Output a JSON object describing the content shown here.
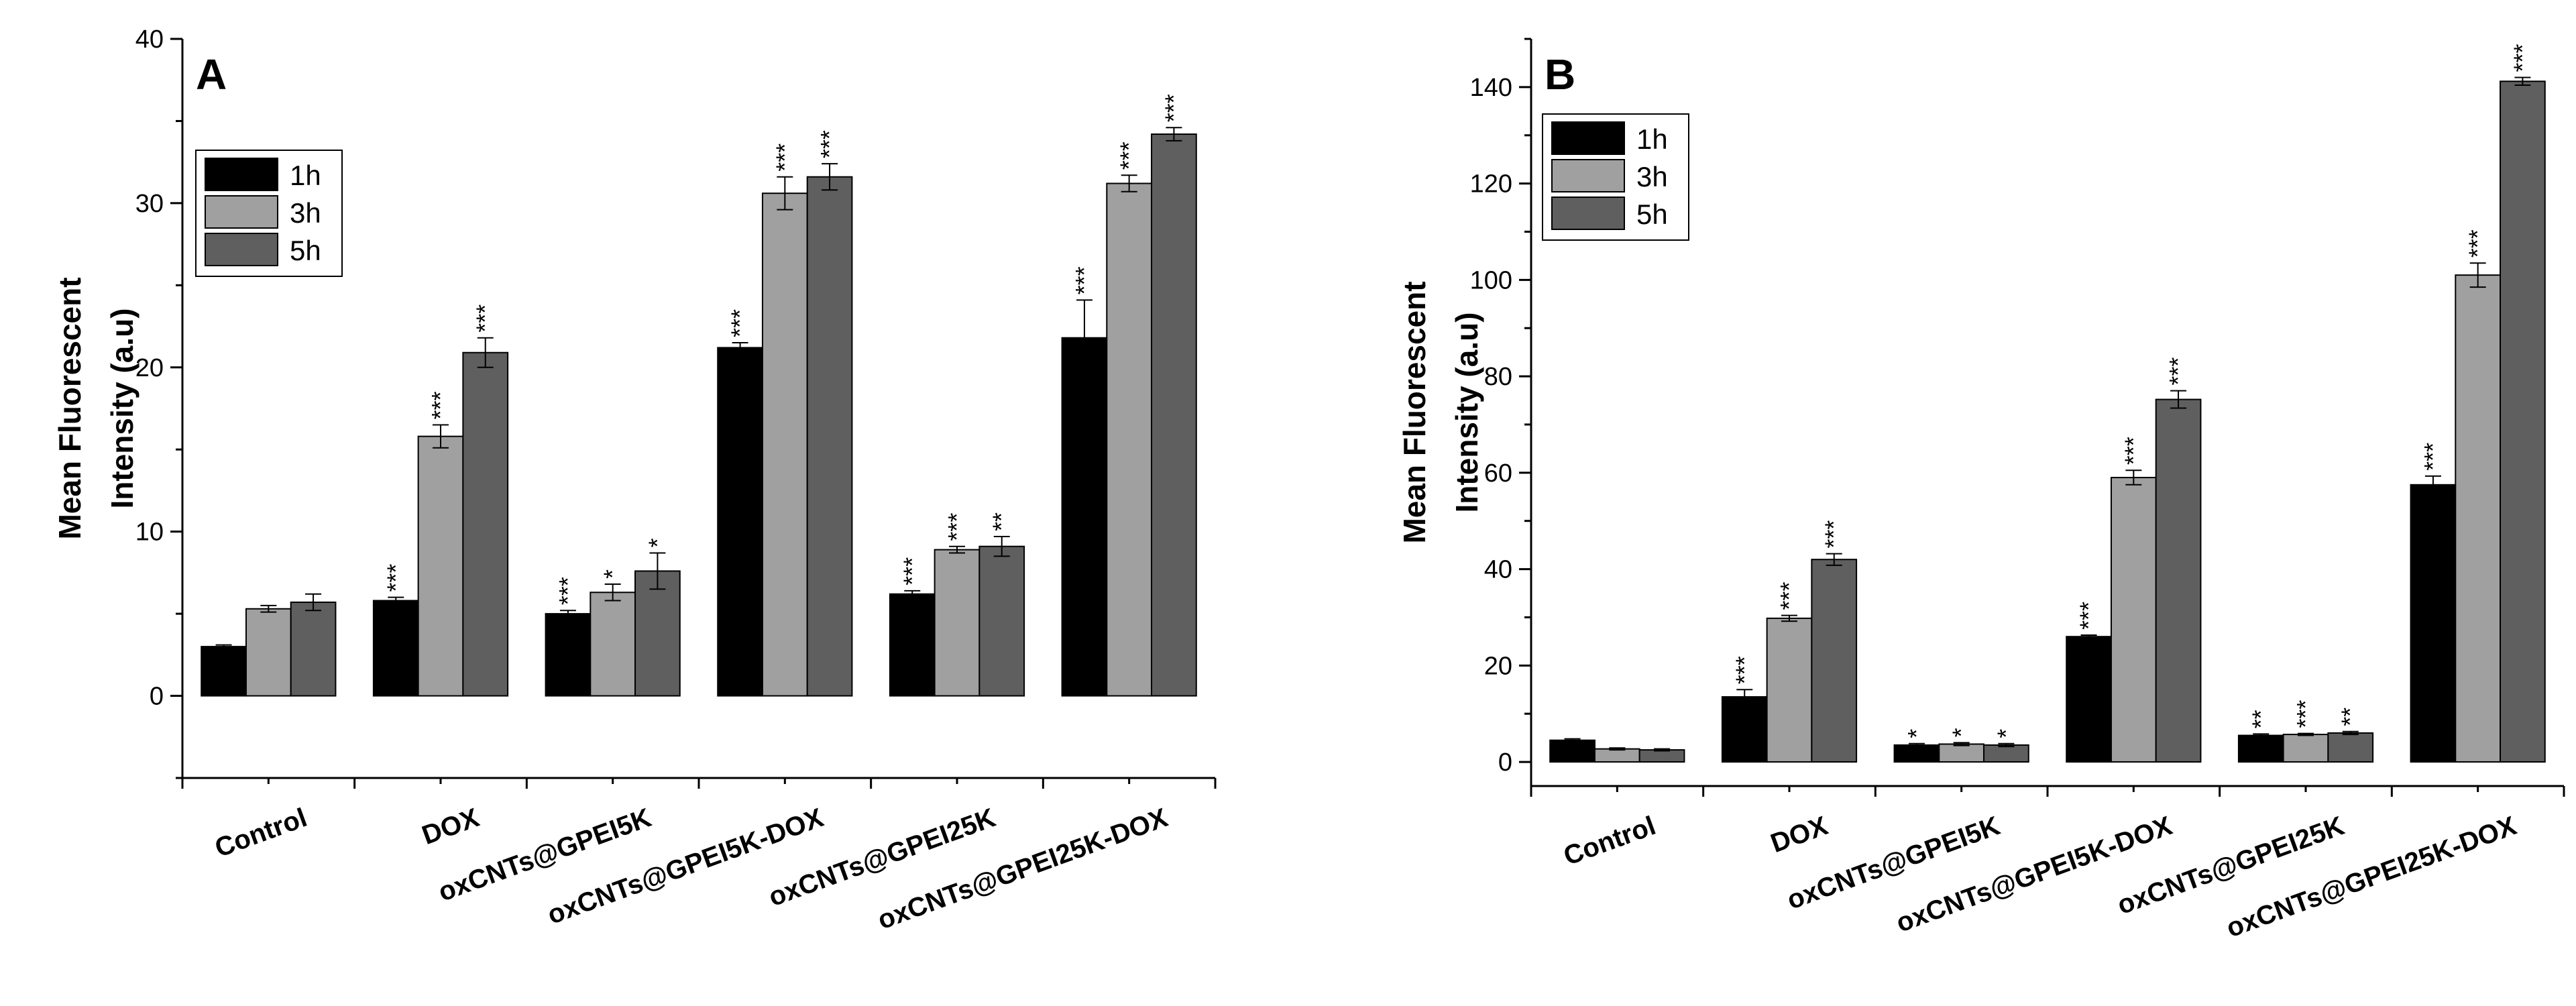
{
  "colors": {
    "1h": "#000000",
    "3h": "#a0a0a0",
    "5h": "#5f5f5f"
  },
  "chart_data": [
    {
      "type": "bar",
      "panel": "A",
      "ylabel_lines": [
        "Mean Fluorescent",
        "Intensity (a.u)"
      ],
      "ylim": [
        -5,
        40
      ],
      "yticks": [
        0,
        10,
        20,
        30,
        40
      ],
      "categories": [
        "Control",
        "DOX",
        "oxCNTs@GPEI5K",
        "oxCNTs@GPEI5K-DOX",
        "oxCNTs@GPEI25K",
        "oxCNTs@GPEI25K-DOX"
      ],
      "legend": [
        "1h",
        "3h",
        "5h"
      ],
      "series": [
        {
          "name": "1h",
          "values": [
            3.0,
            5.8,
            5.0,
            21.2,
            6.2,
            21.8
          ],
          "errors": [
            0.1,
            0.2,
            0.2,
            0.3,
            0.2,
            2.3
          ],
          "sig": [
            "",
            "***",
            "***",
            "***",
            "***",
            "***"
          ]
        },
        {
          "name": "3h",
          "values": [
            5.3,
            15.8,
            6.3,
            30.6,
            8.9,
            31.2
          ],
          "errors": [
            0.2,
            0.7,
            0.5,
            1.0,
            0.2,
            0.5
          ],
          "sig": [
            "",
            "***",
            "*",
            "***",
            "***",
            "***"
          ]
        },
        {
          "name": "5h",
          "values": [
            5.7,
            20.9,
            7.6,
            31.6,
            9.1,
            34.2
          ],
          "errors": [
            0.5,
            0.9,
            1.1,
            0.8,
            0.6,
            0.4
          ],
          "sig": [
            "",
            "***",
            "*",
            "***",
            "**",
            "***"
          ]
        }
      ]
    },
    {
      "type": "bar",
      "panel": "B",
      "ylabel_lines": [
        "Mean Fluorescent",
        "Intensity (a.u)"
      ],
      "ylim": [
        -5,
        150
      ],
      "yticks": [
        0,
        20,
        40,
        60,
        80,
        100,
        120,
        140
      ],
      "categories": [
        "Control",
        "DOX",
        "oxCNTs@GPEI5K",
        "oxCNTs@GPEI5K-DOX",
        "oxCNTs@GPEI25K",
        "oxCNTs@GPEI25K-DOX"
      ],
      "legend": [
        "1h",
        "3h",
        "5h"
      ],
      "series": [
        {
          "name": "1h",
          "values": [
            4.5,
            13.5,
            3.5,
            26.0,
            5.5,
            57.5
          ],
          "errors": [
            0.3,
            1.5,
            0.3,
            0.3,
            0.3,
            1.8
          ],
          "sig": [
            "",
            "***",
            "*",
            "***",
            "**",
            "***"
          ]
        },
        {
          "name": "3h",
          "values": [
            2.7,
            29.8,
            3.7,
            59.0,
            5.7,
            101.0
          ],
          "errors": [
            0.2,
            0.6,
            0.3,
            1.5,
            0.2,
            2.5
          ],
          "sig": [
            "",
            "***",
            "*",
            "***",
            "***",
            "***"
          ]
        },
        {
          "name": "5h",
          "values": [
            2.5,
            42.0,
            3.5,
            75.2,
            6.0,
            141.2
          ],
          "errors": [
            0.2,
            1.2,
            0.3,
            1.8,
            0.3,
            0.8
          ],
          "sig": [
            "",
            "***",
            "*",
            "***",
            "**",
            "***"
          ]
        }
      ]
    }
  ]
}
